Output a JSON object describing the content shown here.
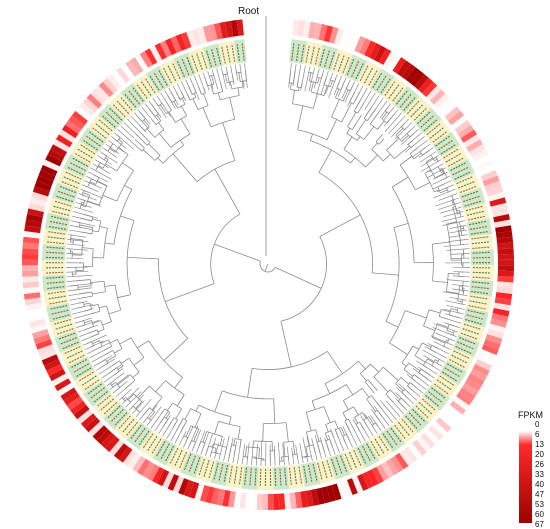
{
  "figure": {
    "root_label": "Root",
    "legend": {
      "title": "FPKM",
      "ticks": [
        "0",
        "6",
        "13",
        "20",
        "26",
        "33",
        "40",
        "47",
        "53",
        "60",
        "67"
      ],
      "color_low": "#ffffff",
      "color_high": "#e00000"
    },
    "colors": {
      "branch": "#8c8c8c",
      "label_band_green": "#cfe6c8",
      "label_band_yellow": "#fbf2c8",
      "label_text": "#2e6b3a",
      "label_text_alt": "#7a5a10"
    },
    "chart_data": {
      "type": "circular-phylogenetic-tree-with-heatmap",
      "leaf_count": 260,
      "heatmap_metric": "FPKM",
      "heatmap_range": [
        0,
        67
      ]
    }
  }
}
